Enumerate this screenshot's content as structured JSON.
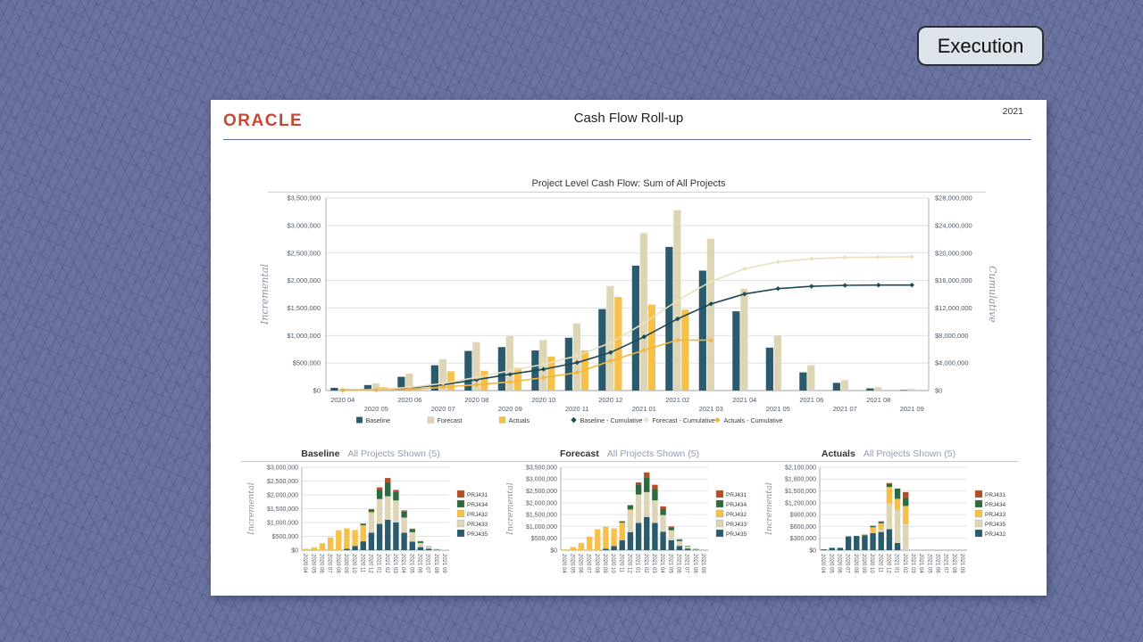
{
  "badge": {
    "label": "Execution"
  },
  "header": {
    "logo": "ORACLE",
    "title": "Cash Flow Roll-up",
    "year": "2021"
  },
  "colors": {
    "background": "#6b74a0",
    "panel": "#ffffff",
    "oracle_red": "#c74634",
    "badge_bg": "#dde3eb",
    "badge_border": "#2b2f33",
    "teal": "#2a5b6c",
    "beige": "#ddd5b6",
    "gold": "#f6c14a",
    "green": "#2d6a40",
    "rust": "#b24f27",
    "line_dark": "#1d4856",
    "line_beige": "#e9e0bd",
    "line_gold": "#f2b640",
    "grid": "#dddfe1",
    "axis_text": "#4c5866",
    "serif_label": "#8791a7"
  },
  "chart_data": [
    {
      "id": "main",
      "type": "bar+line",
      "title": "Project Level Cash Flow: Sum of All Projects",
      "ylabel_left": "Incremental",
      "ylabel_right": "Cumulative",
      "ylim_left": [
        0,
        3500000
      ],
      "ytick_step_left": 500000,
      "ylim_right": [
        0,
        28000000
      ],
      "ytick_step_right": 4000000,
      "grid": true,
      "legend_position": "bottom",
      "categories": [
        "2020 04",
        "2020 05",
        "2020 06",
        "2020 07",
        "2020 08",
        "2020 09",
        "2020 10",
        "2020 11",
        "2020 12",
        "2021 01",
        "2021 02",
        "2021 03",
        "2021 04",
        "2021 05",
        "2021 06",
        "2021 07",
        "2021 08",
        "2021 09"
      ],
      "series": [
        {
          "name": "Baseline",
          "type": "bar",
          "color": "#2a5b6c",
          "values": [
            50000,
            100000,
            250000,
            460000,
            720000,
            790000,
            730000,
            960000,
            1480000,
            2270000,
            2610000,
            2180000,
            1440000,
            780000,
            330000,
            140000,
            40000,
            10000
          ]
        },
        {
          "name": "Forecast",
          "type": "bar",
          "color": "#ddd5b6",
          "values": [
            30000,
            130000,
            310000,
            570000,
            880000,
            990000,
            920000,
            1220000,
            1900000,
            2860000,
            3280000,
            2760000,
            1850000,
            1000000,
            460000,
            190000,
            60000,
            30000
          ]
        },
        {
          "name": "Actuals",
          "type": "bar",
          "color": "#f6c14a",
          "values": [
            20000,
            60000,
            60000,
            350000,
            360000,
            410000,
            620000,
            730000,
            1700000,
            1560000,
            1470000,
            0,
            0,
            0,
            0,
            0,
            0,
            0
          ]
        },
        {
          "name": "Baseline - Cumulative",
          "type": "line",
          "axis": "right",
          "color": "#1d4856",
          "values": [
            50000,
            150000,
            400000,
            860000,
            1580000,
            2370000,
            3100000,
            4060000,
            5540000,
            7810000,
            10420000,
            12600000,
            14040000,
            14820000,
            15150000,
            15290000,
            15330000,
            15340000
          ]
        },
        {
          "name": "Forecast - Cumulative",
          "type": "line",
          "axis": "right",
          "color": "#e9e0bd",
          "values": [
            30000,
            160000,
            470000,
            1040000,
            1920000,
            2910000,
            3830000,
            5050000,
            6950000,
            9810000,
            13090000,
            15850000,
            17700000,
            18700000,
            19160000,
            19350000,
            19410000,
            19440000
          ]
        },
        {
          "name": "Actuals - Cumulative",
          "type": "line",
          "axis": "right",
          "color": "#f2b640",
          "values": [
            20000,
            80000,
            140000,
            490000,
            850000,
            1260000,
            1880000,
            2610000,
            4310000,
            5870000,
            7340000,
            7340000
          ]
        }
      ]
    },
    {
      "id": "baseline",
      "type": "stacked-bar",
      "title": "Baseline",
      "subtitle": "All Projects Shown (5)",
      "ylabel": "Incremental",
      "ylim": [
        0,
        3000000
      ],
      "ytick_step": 500000,
      "legend": [
        "PRJ431",
        "PRJ434",
        "PRJ432",
        "PRJ433",
        "PRJ435"
      ],
      "categories": [
        "2020 04",
        "2020 05",
        "2020 06",
        "2020 07",
        "2020 08",
        "2020 09",
        "2020 10",
        "2020 11",
        "2020 12",
        "2021 01",
        "2021 02",
        "2021 03",
        "2021 04",
        "2021 05",
        "2021 06",
        "2021 07",
        "2021 08",
        "2021 09"
      ],
      "series": [
        {
          "name": "PRJ435",
          "color": "#2a5b6c",
          "values": [
            0,
            0,
            0,
            0,
            0,
            50000,
            150000,
            320000,
            630000,
            950000,
            1100000,
            1000000,
            630000,
            310000,
            110000,
            50000,
            15000,
            0
          ]
        },
        {
          "name": "PRJ433",
          "color": "#ddd5b6",
          "values": [
            0,
            0,
            0,
            0,
            0,
            0,
            0,
            0,
            700000,
            900000,
            850000,
            800000,
            550000,
            340000,
            150000,
            75000,
            20000,
            10000
          ]
        },
        {
          "name": "PRJ432",
          "color": "#f6c14a",
          "values": [
            50000,
            100000,
            250000,
            460000,
            720000,
            740000,
            580000,
            580000,
            50000,
            0,
            0,
            0,
            0,
            0,
            0,
            0,
            0,
            0
          ]
        },
        {
          "name": "PRJ434",
          "color": "#2d6a40",
          "values": [
            0,
            0,
            0,
            0,
            0,
            0,
            0,
            60000,
            100000,
            340000,
            500000,
            310000,
            210000,
            100000,
            50000,
            12000,
            5000,
            0
          ]
        },
        {
          "name": "PRJ431",
          "color": "#b24f27",
          "values": [
            0,
            0,
            0,
            0,
            0,
            0,
            0,
            0,
            0,
            80000,
            160000,
            70000,
            50000,
            30000,
            20000,
            3000,
            0,
            0
          ]
        }
      ]
    },
    {
      "id": "forecast",
      "type": "stacked-bar",
      "title": "Forecast",
      "subtitle": "All Projects Shown (5)",
      "ylabel": "Incremental",
      "ylim": [
        0,
        3500000
      ],
      "ytick_step": 500000,
      "legend": [
        "PRJ431",
        "PRJ434",
        "PRJ432",
        "PRJ433",
        "PRJ435"
      ],
      "categories": [
        "2020 04",
        "2020 05",
        "2020 06",
        "2020 07",
        "2020 08",
        "2020 09",
        "2020 10",
        "2020 11",
        "2020 12",
        "2021 01",
        "2021 02",
        "2021 03",
        "2021 04",
        "2021 05",
        "2021 06",
        "2021 07",
        "2021 08",
        "2021 09"
      ],
      "series": [
        {
          "name": "PRJ435",
          "color": "#2a5b6c",
          "values": [
            0,
            0,
            0,
            0,
            0,
            60000,
            170000,
            420000,
            760000,
            1150000,
            1400000,
            1150000,
            780000,
            420000,
            180000,
            70000,
            20000,
            0
          ]
        },
        {
          "name": "PRJ433",
          "color": "#ddd5b6",
          "values": [
            0,
            0,
            0,
            0,
            0,
            0,
            0,
            0,
            900000,
            1200000,
            1050000,
            950000,
            700000,
            420000,
            200000,
            95000,
            30000,
            25000
          ]
        },
        {
          "name": "PRJ432",
          "color": "#f6c14a",
          "values": [
            30000,
            130000,
            310000,
            570000,
            880000,
            930000,
            750000,
            740000,
            60000,
            0,
            0,
            0,
            0,
            0,
            0,
            0,
            0,
            0
          ]
        },
        {
          "name": "PRJ434",
          "color": "#2d6a40",
          "values": [
            0,
            0,
            0,
            0,
            0,
            0,
            0,
            60000,
            180000,
            420000,
            600000,
            480000,
            250000,
            130000,
            60000,
            20000,
            10000,
            5000
          ]
        },
        {
          "name": "PRJ431",
          "color": "#b24f27",
          "values": [
            0,
            0,
            0,
            0,
            0,
            0,
            0,
            0,
            0,
            90000,
            230000,
            180000,
            120000,
            30000,
            20000,
            5000,
            0,
            0
          ]
        }
      ]
    },
    {
      "id": "actuals",
      "type": "stacked-bar",
      "title": "Actuals",
      "subtitle": "All Projects Shown (5)",
      "ylabel": "Incremental",
      "ylim": [
        0,
        2100000
      ],
      "ytick_step": 300000,
      "legend": [
        "PRJ431",
        "PRJ434",
        "PRJ433",
        "PRJ435",
        "PRJ432"
      ],
      "categories": [
        "2020 04",
        "2020 05",
        "2020 06",
        "2020 07",
        "2020 08",
        "2020 09",
        "2020 10",
        "2020 11",
        "2020 12",
        "2021 01",
        "2021 02",
        "2021 03",
        "2021 04",
        "2021 05",
        "2021 06",
        "2021 07",
        "2021 08",
        "2021 09"
      ],
      "series": [
        {
          "name": "PRJ432",
          "color": "#2a5b6c",
          "values": [
            20000,
            60000,
            60000,
            350000,
            360000,
            380000,
            430000,
            460000,
            530000,
            180000,
            0,
            0,
            0,
            0,
            0,
            0,
            0,
            0
          ]
        },
        {
          "name": "PRJ435",
          "color": "#ddd5b6",
          "values": [
            0,
            0,
            0,
            0,
            0,
            0,
            0,
            60000,
            650000,
            840000,
            650000,
            0,
            0,
            0,
            0,
            0,
            0,
            0
          ]
        },
        {
          "name": "PRJ433",
          "color": "#f6c14a",
          "values": [
            0,
            0,
            0,
            0,
            0,
            30000,
            150000,
            160000,
            420000,
            280000,
            470000,
            0,
            0,
            0,
            0,
            0,
            0,
            0
          ]
        },
        {
          "name": "PRJ434",
          "color": "#2d6a40",
          "values": [
            0,
            0,
            0,
            0,
            0,
            0,
            30000,
            40000,
            80000,
            260000,
            200000,
            0,
            0,
            0,
            0,
            0,
            0,
            0
          ]
        },
        {
          "name": "PRJ431",
          "color": "#b24f27",
          "values": [
            0,
            0,
            0,
            0,
            0,
            0,
            10000,
            10000,
            20000,
            0,
            150000,
            0,
            0,
            0,
            0,
            0,
            0,
            0
          ]
        }
      ]
    }
  ]
}
